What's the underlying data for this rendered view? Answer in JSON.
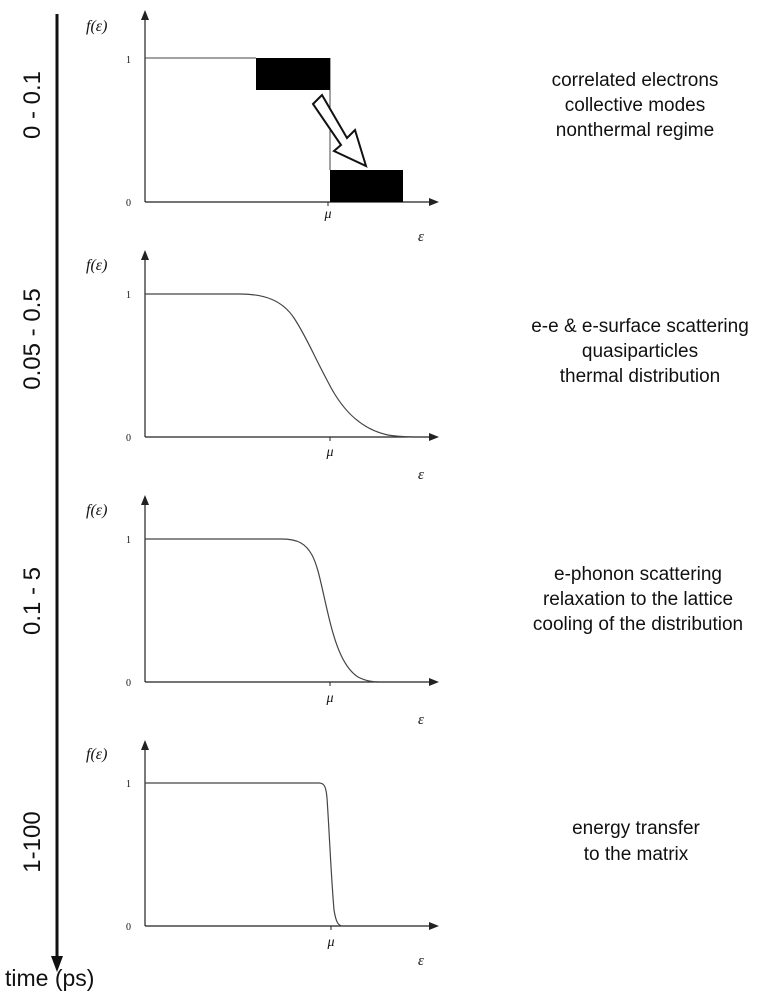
{
  "figure": {
    "time_axis_label": "time (ps)",
    "panels": [
      {
        "time_range": "0 - 0.1",
        "y_label": "f(ε)",
        "x_label": "ε",
        "tick_one": "1",
        "tick_zero": "0",
        "mu_label": "μ",
        "distribution": "nonthermal step with arrow",
        "description": [
          "correlated electrons",
          "collective modes",
          "nonthermal regime"
        ]
      },
      {
        "time_range": "0.05 - 0.5",
        "y_label": "f(ε)",
        "x_label": "ε",
        "tick_one": "1",
        "tick_zero": "0",
        "mu_label": "μ",
        "distribution": "broad Fermi-Dirac",
        "description": [
          "e-e & e-surface scattering",
          "quasiparticles",
          "thermal distribution"
        ]
      },
      {
        "time_range": "0.1 - 5",
        "y_label": "f(ε)",
        "x_label": "ε",
        "tick_one": "1",
        "tick_zero": "0",
        "mu_label": "μ",
        "distribution": "cooler Fermi-Dirac",
        "description": [
          "e-phonon scattering",
          "relaxation to the lattice",
          "cooling of the distribution"
        ]
      },
      {
        "time_range": "1-100",
        "y_label": "f(ε)",
        "x_label": "ε",
        "tick_one": "1",
        "tick_zero": "0",
        "mu_label": "μ",
        "distribution": "sharp Fermi-Dirac",
        "description": [
          "energy transfer",
          "to the matrix"
        ]
      }
    ]
  },
  "colors": {
    "ink": "#111111",
    "axis": "#222222",
    "curve": "#444444",
    "block": "#000000",
    "arrow_fill": "#ffffff"
  }
}
